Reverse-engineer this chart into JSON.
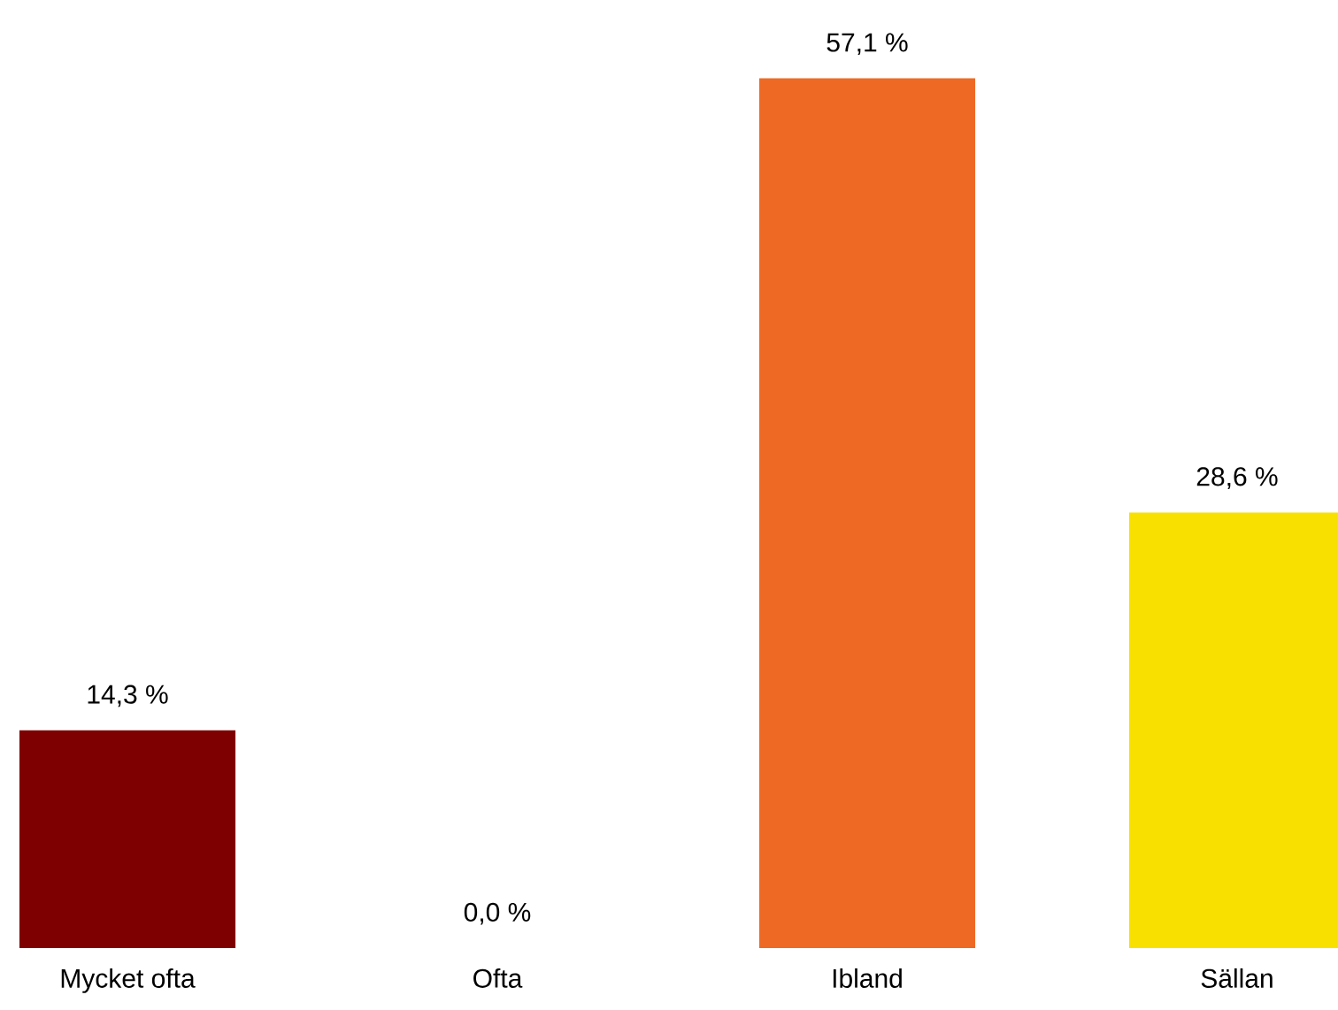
{
  "chart_data": {
    "type": "bar",
    "categories": [
      "Mycket ofta",
      "Ofta",
      "Ibland",
      "Sällan"
    ],
    "values": [
      14.3,
      0.0,
      57.1,
      28.6
    ],
    "value_labels": [
      "14,3 %",
      "0,0 %",
      "57,1 %",
      "28,6 %"
    ],
    "colors": [
      "#7f0000",
      "#c0392b",
      "#ee6a24",
      "#f8e100"
    ]
  }
}
